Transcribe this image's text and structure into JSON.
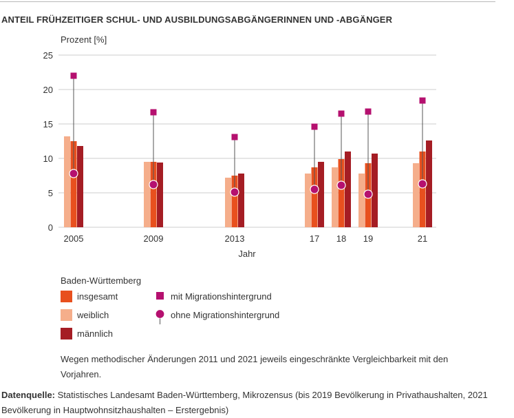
{
  "title": "ANTEIL FRÜHZEITIGER SCHUL- UND AUSBILDUNGSABGÄNGERINNEN UND -ABGÄNGER",
  "note": "Wegen methodischer Änderungen 2011 und 2021 jeweils eingeschränkte Vergleichbarkeit mit den Vorjahren.",
  "source": {
    "label": "Datenquelle:",
    "text": " Statistisches Landesamt Baden-Württemberg, Mikrozensus (bis 2019 Bevölkerung in Privathaushalten, 2021 Bevölkerung in Hauptwohnsitzhaushalten – Erstergebnis)"
  },
  "legend": {
    "title": "Baden-Württemberg",
    "items": [
      {
        "label": "insgesamt",
        "color": "#e8501e",
        "shape": "square"
      },
      {
        "label": "weiblich",
        "color": "#f5ae8b",
        "shape": "square"
      },
      {
        "label": "männlich",
        "color": "#a51d24",
        "shape": "square"
      },
      {
        "label": "mit Migrationshintergrund",
        "color": "#b5106f",
        "shape": "small-square"
      },
      {
        "label": "ohne Migrationshintergrund",
        "color": "#b5106f",
        "shape": "circle"
      }
    ]
  },
  "chart_data": {
    "type": "bar",
    "ylabel": "Prozent [%]",
    "xlabel": "Jahr",
    "ylim": [
      0,
      25
    ],
    "yticks": [
      0,
      5,
      10,
      15,
      20,
      25
    ],
    "grid": true,
    "categories": [
      "2005",
      "2009",
      "2013",
      "17",
      "18",
      "19",
      "21"
    ],
    "series": [
      {
        "name": "weiblich",
        "color": "#f5ae8b",
        "values": [
          13.2,
          9.5,
          7.2,
          7.8,
          8.7,
          7.8,
          9.3
        ]
      },
      {
        "name": "insgesamt",
        "color": "#e8501e",
        "values": [
          12.5,
          9.5,
          7.5,
          8.7,
          9.9,
          9.3,
          11.0
        ]
      },
      {
        "name": "männlich",
        "color": "#a51d24",
        "values": [
          11.8,
          9.4,
          7.8,
          9.5,
          11.0,
          10.7,
          12.6
        ]
      }
    ],
    "markers": [
      {
        "name": "mit Migrationshintergrund",
        "color": "#b5106f",
        "shape": "square",
        "values": [
          22.0,
          16.7,
          13.1,
          14.6,
          16.5,
          16.8,
          18.4
        ]
      },
      {
        "name": "ohne Migrationshintergrund",
        "color": "#b5106f",
        "shape": "circle",
        "values": [
          7.8,
          6.2,
          5.1,
          5.5,
          6.1,
          4.8,
          6.3
        ]
      }
    ]
  }
}
